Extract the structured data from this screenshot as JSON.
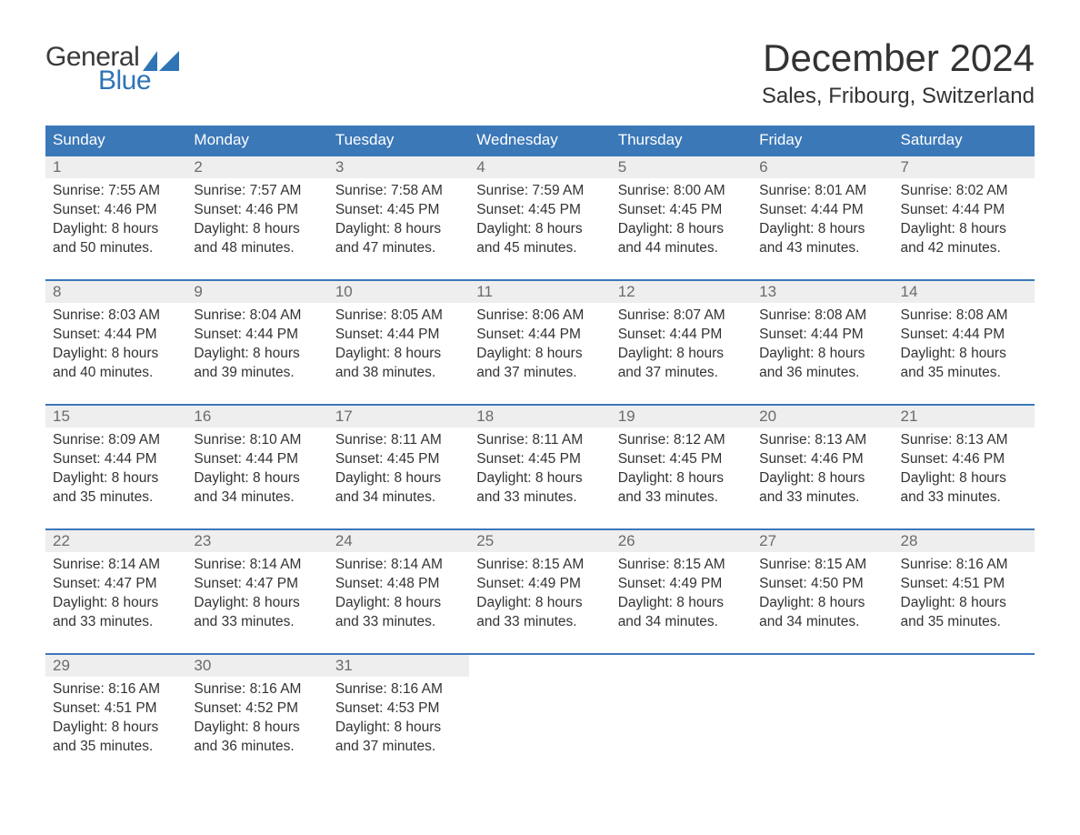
{
  "logo": {
    "text1": "General",
    "text2": "Blue",
    "general_color": "#3a3a3a",
    "blue_color": "#2f74b5",
    "sail_color": "#2f74b5"
  },
  "title": "December 2024",
  "location": "Sales, Fribourg, Switzerland",
  "colors": {
    "header_bg": "#3b78b8",
    "header_text": "#ffffff",
    "date_bg": "#eeeeee",
    "date_text": "#6b6b6b",
    "row_border": "#3b78b8",
    "body_text": "#333333",
    "page_bg": "#ffffff"
  },
  "day_names": [
    "Sunday",
    "Monday",
    "Tuesday",
    "Wednesday",
    "Thursday",
    "Friday",
    "Saturday"
  ],
  "labels": {
    "sunrise": "Sunrise",
    "sunset": "Sunset",
    "daylight": "Daylight"
  },
  "weeks": [
    [
      {
        "date": "1",
        "sunrise": "7:55 AM",
        "sunset": "4:46 PM",
        "daylight": "8 hours and 50 minutes."
      },
      {
        "date": "2",
        "sunrise": "7:57 AM",
        "sunset": "4:46 PM",
        "daylight": "8 hours and 48 minutes."
      },
      {
        "date": "3",
        "sunrise": "7:58 AM",
        "sunset": "4:45 PM",
        "daylight": "8 hours and 47 minutes."
      },
      {
        "date": "4",
        "sunrise": "7:59 AM",
        "sunset": "4:45 PM",
        "daylight": "8 hours and 45 minutes."
      },
      {
        "date": "5",
        "sunrise": "8:00 AM",
        "sunset": "4:45 PM",
        "daylight": "8 hours and 44 minutes."
      },
      {
        "date": "6",
        "sunrise": "8:01 AM",
        "sunset": "4:44 PM",
        "daylight": "8 hours and 43 minutes."
      },
      {
        "date": "7",
        "sunrise": "8:02 AM",
        "sunset": "4:44 PM",
        "daylight": "8 hours and 42 minutes."
      }
    ],
    [
      {
        "date": "8",
        "sunrise": "8:03 AM",
        "sunset": "4:44 PM",
        "daylight": "8 hours and 40 minutes."
      },
      {
        "date": "9",
        "sunrise": "8:04 AM",
        "sunset": "4:44 PM",
        "daylight": "8 hours and 39 minutes."
      },
      {
        "date": "10",
        "sunrise": "8:05 AM",
        "sunset": "4:44 PM",
        "daylight": "8 hours and 38 minutes."
      },
      {
        "date": "11",
        "sunrise": "8:06 AM",
        "sunset": "4:44 PM",
        "daylight": "8 hours and 37 minutes."
      },
      {
        "date": "12",
        "sunrise": "8:07 AM",
        "sunset": "4:44 PM",
        "daylight": "8 hours and 37 minutes."
      },
      {
        "date": "13",
        "sunrise": "8:08 AM",
        "sunset": "4:44 PM",
        "daylight": "8 hours and 36 minutes."
      },
      {
        "date": "14",
        "sunrise": "8:08 AM",
        "sunset": "4:44 PM",
        "daylight": "8 hours and 35 minutes."
      }
    ],
    [
      {
        "date": "15",
        "sunrise": "8:09 AM",
        "sunset": "4:44 PM",
        "daylight": "8 hours and 35 minutes."
      },
      {
        "date": "16",
        "sunrise": "8:10 AM",
        "sunset": "4:44 PM",
        "daylight": "8 hours and 34 minutes."
      },
      {
        "date": "17",
        "sunrise": "8:11 AM",
        "sunset": "4:45 PM",
        "daylight": "8 hours and 34 minutes."
      },
      {
        "date": "18",
        "sunrise": "8:11 AM",
        "sunset": "4:45 PM",
        "daylight": "8 hours and 33 minutes."
      },
      {
        "date": "19",
        "sunrise": "8:12 AM",
        "sunset": "4:45 PM",
        "daylight": "8 hours and 33 minutes."
      },
      {
        "date": "20",
        "sunrise": "8:13 AM",
        "sunset": "4:46 PM",
        "daylight": "8 hours and 33 minutes."
      },
      {
        "date": "21",
        "sunrise": "8:13 AM",
        "sunset": "4:46 PM",
        "daylight": "8 hours and 33 minutes."
      }
    ],
    [
      {
        "date": "22",
        "sunrise": "8:14 AM",
        "sunset": "4:47 PM",
        "daylight": "8 hours and 33 minutes."
      },
      {
        "date": "23",
        "sunrise": "8:14 AM",
        "sunset": "4:47 PM",
        "daylight": "8 hours and 33 minutes."
      },
      {
        "date": "24",
        "sunrise": "8:14 AM",
        "sunset": "4:48 PM",
        "daylight": "8 hours and 33 minutes."
      },
      {
        "date": "25",
        "sunrise": "8:15 AM",
        "sunset": "4:49 PM",
        "daylight": "8 hours and 33 minutes."
      },
      {
        "date": "26",
        "sunrise": "8:15 AM",
        "sunset": "4:49 PM",
        "daylight": "8 hours and 34 minutes."
      },
      {
        "date": "27",
        "sunrise": "8:15 AM",
        "sunset": "4:50 PM",
        "daylight": "8 hours and 34 minutes."
      },
      {
        "date": "28",
        "sunrise": "8:16 AM",
        "sunset": "4:51 PM",
        "daylight": "8 hours and 35 minutes."
      }
    ],
    [
      {
        "date": "29",
        "sunrise": "8:16 AM",
        "sunset": "4:51 PM",
        "daylight": "8 hours and 35 minutes."
      },
      {
        "date": "30",
        "sunrise": "8:16 AM",
        "sunset": "4:52 PM",
        "daylight": "8 hours and 36 minutes."
      },
      {
        "date": "31",
        "sunrise": "8:16 AM",
        "sunset": "4:53 PM",
        "daylight": "8 hours and 37 minutes."
      },
      null,
      null,
      null,
      null
    ]
  ]
}
